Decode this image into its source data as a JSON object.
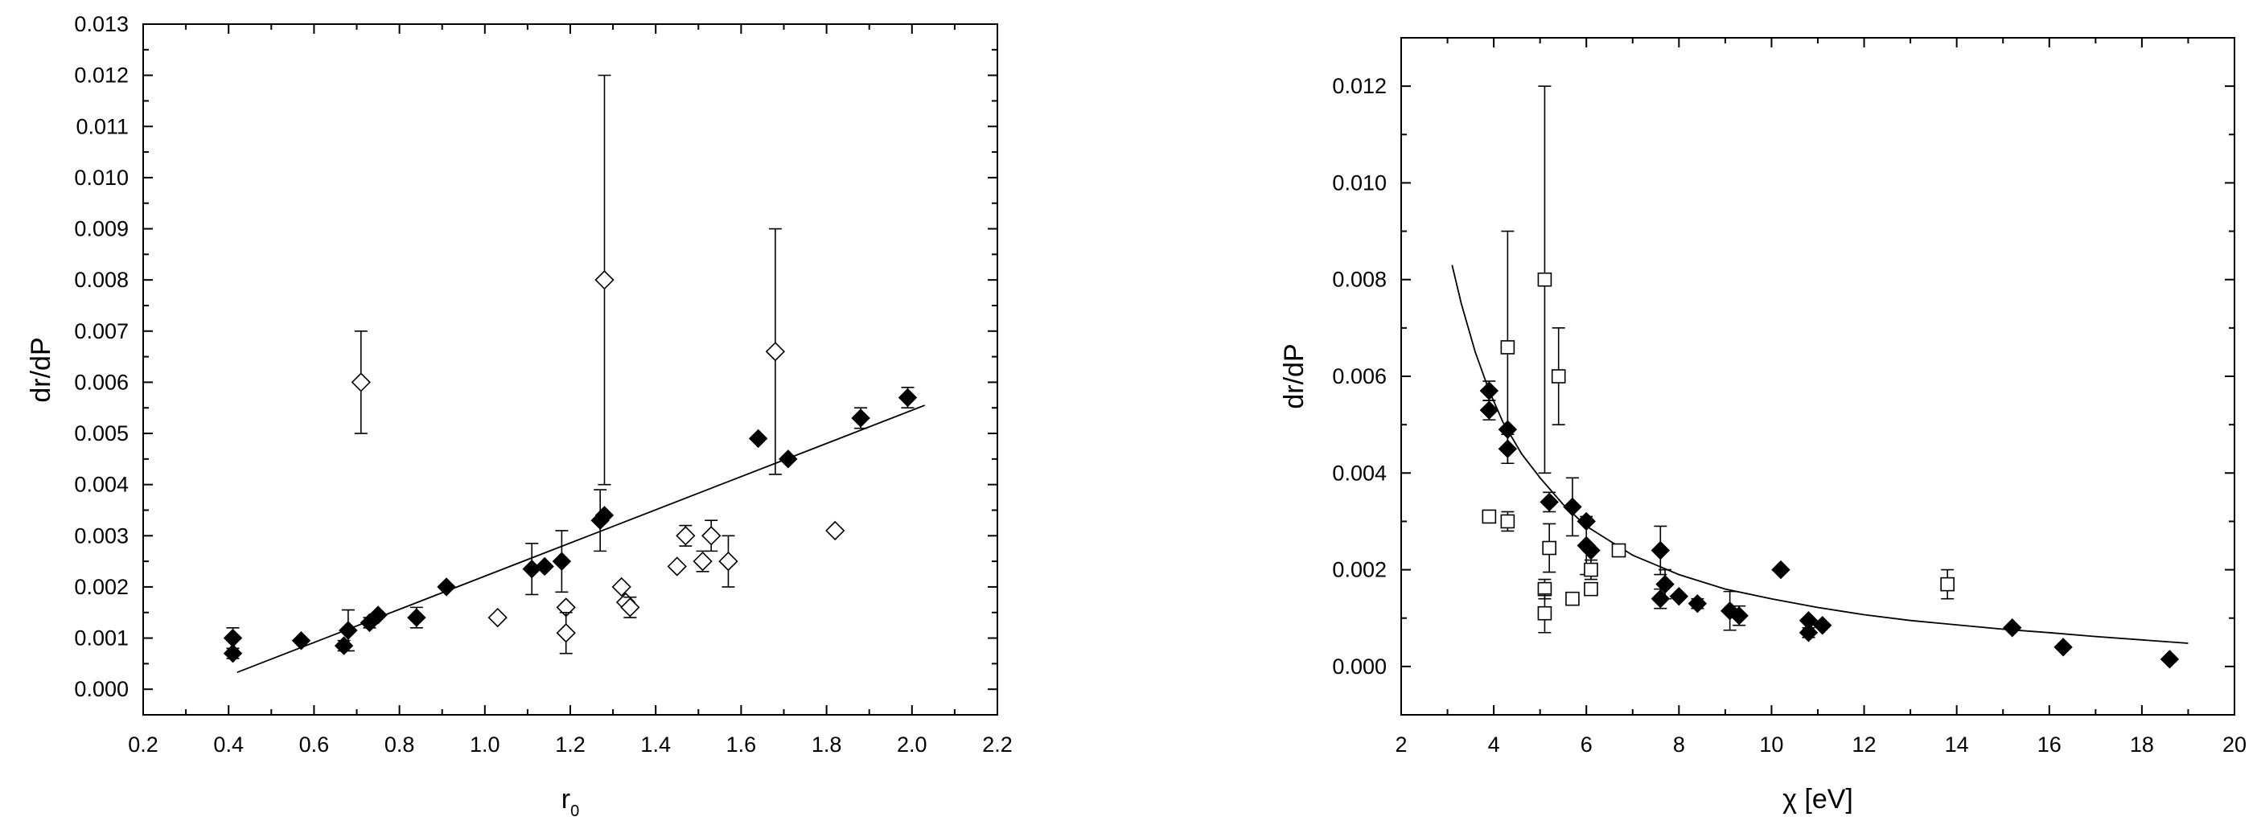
{
  "chart_data": [
    {
      "type": "scatter",
      "title": "",
      "xlabel": "r",
      "xlabel_sub": "0",
      "ylabel": "dr/dP",
      "xlim": [
        0.2,
        2.2
      ],
      "ylim": [
        -0.0005,
        0.013
      ],
      "xticks": [
        0.2,
        0.4,
        0.6,
        0.8,
        1.0,
        1.2,
        1.4,
        1.6,
        1.8,
        2.0,
        2.2
      ],
      "xtick_labels": [
        "0.2",
        "0.4",
        "0.6",
        "0.8",
        "1.0",
        "1.2",
        "1.4",
        "1.6",
        "1.8",
        "2.0",
        "2.2"
      ],
      "yticks": [
        0,
        0.001,
        0.002,
        0.003,
        0.004,
        0.005,
        0.006,
        0.007,
        0.008,
        0.009,
        0.01,
        0.011,
        0.012,
        0.013
      ],
      "ytick_labels": [
        "0.000",
        "0.001",
        "0.002",
        "0.003",
        "0.004",
        "0.005",
        "0.006",
        "0.007",
        "0.008",
        "0.009",
        "0.010",
        "0.011",
        "0.012",
        "0.013"
      ],
      "grid": false,
      "series": [
        {
          "marker": "filled-diamond",
          "points": [
            {
              "x": 0.41,
              "y": 0.001,
              "err": 0.0002
            },
            {
              "x": 0.41,
              "y": 0.0007,
              "err": 0.0001
            },
            {
              "x": 0.57,
              "y": 0.00095,
              "err": 0
            },
            {
              "x": 0.67,
              "y": 0.00085,
              "err": 0.0001
            },
            {
              "x": 0.68,
              "y": 0.00115,
              "err": 0.0004
            },
            {
              "x": 0.73,
              "y": 0.0013,
              "err": 0.0001
            },
            {
              "x": 0.75,
              "y": 0.00145,
              "err": 0
            },
            {
              "x": 0.84,
              "y": 0.0014,
              "err": 0.0002
            },
            {
              "x": 0.91,
              "y": 0.002,
              "err": 0
            },
            {
              "x": 1.11,
              "y": 0.00235,
              "err": 0.0005
            },
            {
              "x": 1.14,
              "y": 0.0024,
              "err": 0
            },
            {
              "x": 1.18,
              "y": 0.0025,
              "err": 0.0006
            },
            {
              "x": 1.27,
              "y": 0.0033,
              "err": 0.0006
            },
            {
              "x": 1.28,
              "y": 0.0034,
              "err": 0
            },
            {
              "x": 1.64,
              "y": 0.0049,
              "err": 0
            },
            {
              "x": 1.71,
              "y": 0.0045,
              "err": 0
            },
            {
              "x": 1.88,
              "y": 0.0053,
              "err": 0.0002
            },
            {
              "x": 1.99,
              "y": 0.0057,
              "err": 0.0002
            }
          ]
        },
        {
          "marker": "open-diamond",
          "points": [
            {
              "x": 0.71,
              "y": 0.006,
              "err": 0.001
            },
            {
              "x": 1.03,
              "y": 0.0014,
              "err": 0
            },
            {
              "x": 1.19,
              "y": 0.0016,
              "err": 0
            },
            {
              "x": 1.19,
              "y": 0.0011,
              "err": 0.0004
            },
            {
              "x": 1.28,
              "y": 0.008,
              "err": 0.004
            },
            {
              "x": 1.32,
              "y": 0.002,
              "err": 0
            },
            {
              "x": 1.33,
              "y": 0.0017,
              "err": 0
            },
            {
              "x": 1.34,
              "y": 0.0016,
              "err": 0.0002
            },
            {
              "x": 1.45,
              "y": 0.0024,
              "err": 0
            },
            {
              "x": 1.47,
              "y": 0.003,
              "err": 0.0002
            },
            {
              "x": 1.51,
              "y": 0.0025,
              "err": 0.0002
            },
            {
              "x": 1.53,
              "y": 0.003,
              "err": 0.0003
            },
            {
              "x": 1.57,
              "y": 0.0025,
              "err": 0.0005
            },
            {
              "x": 1.68,
              "y": 0.0066,
              "err": 0.0024
            },
            {
              "x": 1.82,
              "y": 0.0031,
              "err": 0
            }
          ]
        }
      ],
      "fit_line": {
        "points": [
          [
            0.42,
            0.00033
          ],
          [
            2.03,
            0.00555
          ]
        ]
      }
    },
    {
      "type": "scatter",
      "title": "",
      "xlabel": "χ  [eV]",
      "ylabel": "dr/dP",
      "xlim": [
        2,
        20
      ],
      "ylim": [
        -0.001,
        0.013
      ],
      "xticks": [
        2,
        4,
        6,
        8,
        10,
        12,
        14,
        16,
        18,
        20
      ],
      "xtick_labels": [
        "2",
        "4",
        "6",
        "8",
        "10",
        "12",
        "14",
        "16",
        "18",
        "20"
      ],
      "yticks": [
        0,
        0.002,
        0.004,
        0.006,
        0.008,
        0.01,
        0.012
      ],
      "ytick_labels": [
        "0.000",
        "0.002",
        "0.004",
        "0.006",
        "0.008",
        "0.010",
        "0.012"
      ],
      "grid": false,
      "series": [
        {
          "marker": "filled-diamond",
          "points": [
            {
              "x": 3.9,
              "y": 0.0057,
              "err": 0.0002
            },
            {
              "x": 3.9,
              "y": 0.0053,
              "err": 0.0002
            },
            {
              "x": 4.3,
              "y": 0.0049,
              "err": 0
            },
            {
              "x": 4.3,
              "y": 0.0045,
              "err": 0.0003
            },
            {
              "x": 5.2,
              "y": 0.0034,
              "err": 0.0002
            },
            {
              "x": 5.7,
              "y": 0.0033,
              "err": 0.0006
            },
            {
              "x": 6.0,
              "y": 0.003,
              "err": 0
            },
            {
              "x": 6.0,
              "y": 0.0025,
              "err": 0.0006
            },
            {
              "x": 6.1,
              "y": 0.0024,
              "err": 0
            },
            {
              "x": 7.6,
              "y": 0.0024,
              "err": 0.0005
            },
            {
              "x": 7.6,
              "y": 0.0014,
              "err": 0.0002
            },
            {
              "x": 7.7,
              "y": 0.0017,
              "err": 0.0003
            },
            {
              "x": 8.0,
              "y": 0.00145,
              "err": 0
            },
            {
              "x": 8.4,
              "y": 0.0013,
              "err": 0.0001
            },
            {
              "x": 9.1,
              "y": 0.00115,
              "err": 0.0004
            },
            {
              "x": 9.3,
              "y": 0.00105,
              "err": 0.0002
            },
            {
              "x": 10.2,
              "y": 0.002,
              "err": 0
            },
            {
              "x": 10.8,
              "y": 0.0007,
              "err": 0.0001
            },
            {
              "x": 10.8,
              "y": 0.00095,
              "err": 0
            },
            {
              "x": 11.1,
              "y": 0.00085,
              "err": 0
            },
            {
              "x": 15.2,
              "y": 0.0008,
              "err": 0
            },
            {
              "x": 16.3,
              "y": 0.0004,
              "err": 0
            },
            {
              "x": 18.6,
              "y": 0.00015,
              "err": 0
            }
          ]
        },
        {
          "marker": "open-square",
          "points": [
            {
              "x": 3.9,
              "y": 0.0031,
              "err": 0.0001
            },
            {
              "x": 4.3,
              "y": 0.003,
              "err": 0.0002
            },
            {
              "x": 4.3,
              "y": 0.0066,
              "err": 0.0024
            },
            {
              "x": 5.1,
              "y": 0.008,
              "err": 0.004
            },
            {
              "x": 5.1,
              "y": 0.0016,
              "err": 0.0002
            },
            {
              "x": 5.1,
              "y": 0.0011,
              "err": 0.0004
            },
            {
              "x": 5.2,
              "y": 0.00245,
              "err": 0.0005
            },
            {
              "x": 5.4,
              "y": 0.006,
              "err": 0.001
            },
            {
              "x": 5.7,
              "y": 0.0014,
              "err": 0.0001
            },
            {
              "x": 6.1,
              "y": 0.002,
              "err": 0.0002
            },
            {
              "x": 6.1,
              "y": 0.0016,
              "err": 0
            },
            {
              "x": 6.7,
              "y": 0.0024,
              "err": 0
            },
            {
              "x": 13.8,
              "y": 0.0017,
              "err": 0.0003
            }
          ]
        }
      ],
      "fit_curve": {
        "x": [
          3.1,
          3.3,
          3.6,
          3.9,
          4.2,
          4.6,
          5.0,
          5.5,
          6.0,
          6.5,
          7.0,
          7.5,
          8.0,
          8.5,
          9.0,
          10.0,
          11.0,
          12.0,
          13.0,
          14.0,
          15.0,
          16.0,
          17.0,
          18.0,
          19.0
        ],
        "y": [
          0.0083,
          0.0075,
          0.0065,
          0.0057,
          0.00505,
          0.0044,
          0.0039,
          0.00335,
          0.0029,
          0.0026,
          0.0023,
          0.0021,
          0.0019,
          0.00175,
          0.0016,
          0.0014,
          0.00122,
          0.00107,
          0.00095,
          0.00086,
          0.00077,
          0.0007,
          0.00062,
          0.00055,
          0.00048
        ]
      }
    }
  ]
}
